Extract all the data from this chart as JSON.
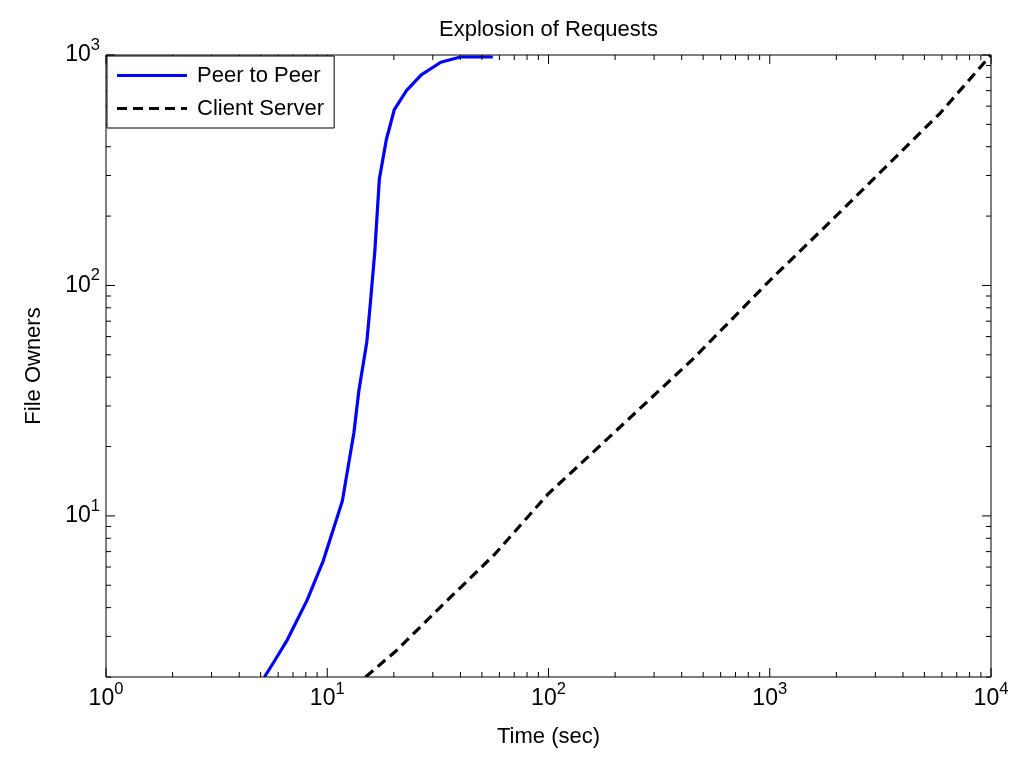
{
  "chart_data": {
    "type": "line",
    "title": "Explosion of Requests",
    "xlabel": "Time (sec)",
    "ylabel": "File Owners",
    "log": "xy",
    "grid": false,
    "legend": "top left",
    "marker": "none",
    "xlim": [
      1,
      10000
    ],
    "ylim": [
      2,
      1000
    ],
    "xticks": [
      {
        "value": 1,
        "label": "10$^{0}$"
      },
      {
        "value": 2,
        "label": null
      },
      {
        "value": 3,
        "label": null
      },
      {
        "value": 4,
        "label": null
      },
      {
        "value": 5,
        "label": null
      },
      {
        "value": 6,
        "label": null
      },
      {
        "value": 7,
        "label": null
      },
      {
        "value": 8,
        "label": null
      },
      {
        "value": 9,
        "label": null
      },
      {
        "value": 10,
        "label": "10$^{1}$"
      },
      {
        "value": 20,
        "label": null
      },
      {
        "value": 30,
        "label": null
      },
      {
        "value": 40,
        "label": null
      },
      {
        "value": 50,
        "label": null
      },
      {
        "value": 60,
        "label": null
      },
      {
        "value": 70,
        "label": null
      },
      {
        "value": 80,
        "label": null
      },
      {
        "value": 90,
        "label": null
      },
      {
        "value": 100,
        "label": "10$^{2}$"
      },
      {
        "value": 200,
        "label": null
      },
      {
        "value": 300,
        "label": null
      },
      {
        "value": 400,
        "label": null
      },
      {
        "value": 500,
        "label": null
      },
      {
        "value": 600,
        "label": null
      },
      {
        "value": 700,
        "label": null
      },
      {
        "value": 800,
        "label": null
      },
      {
        "value": 900,
        "label": null
      },
      {
        "value": 1000,
        "label": "10$^{3}$"
      },
      {
        "value": 2000,
        "label": null
      },
      {
        "value": 3000,
        "label": null
      },
      {
        "value": 4000,
        "label": null
      },
      {
        "value": 5000,
        "label": null
      },
      {
        "value": 6000,
        "label": null
      },
      {
        "value": 7000,
        "label": null
      },
      {
        "value": 8000,
        "label": null
      },
      {
        "value": 9000,
        "label": null
      },
      {
        "value": 10000,
        "label": "10$^{4}$"
      }
    ],
    "yticks": [
      {
        "value": 2,
        "label": null
      },
      {
        "value": 3,
        "label": null
      },
      {
        "value": 4,
        "label": null
      },
      {
        "value": 5,
        "label": null
      },
      {
        "value": 6,
        "label": null
      },
      {
        "value": 7,
        "label": null
      },
      {
        "value": 8,
        "label": null
      },
      {
        "value": 9,
        "label": null
      },
      {
        "value": 10,
        "label": "10$^{1}$"
      },
      {
        "value": 20,
        "label": null
      },
      {
        "value": 30,
        "label": null
      },
      {
        "value": 40,
        "label": null
      },
      {
        "value": 50,
        "label": null
      },
      {
        "value": 60,
        "label": null
      },
      {
        "value": 70,
        "label": null
      },
      {
        "value": 80,
        "label": null
      },
      {
        "value": 90,
        "label": null
      },
      {
        "value": 100,
        "label": "10$^{2}$"
      },
      {
        "value": 200,
        "label": null
      },
      {
        "value": 300,
        "label": null
      },
      {
        "value": 400,
        "label": null
      },
      {
        "value": 500,
        "label": null
      },
      {
        "value": 600,
        "label": null
      },
      {
        "value": 700,
        "label": null
      },
      {
        "value": 800,
        "label": null
      },
      {
        "value": 900,
        "label": null
      },
      {
        "value": 1000,
        "label": "10$^{3}$"
      }
    ],
    "series": [
      {
        "name": "Peer to Peer",
        "color": "#0000ff",
        "line_style": "solid",
        "x": [
          5.2,
          5.7,
          6.6,
          8.1,
          9.6,
          11.7,
          13.2,
          13.9,
          15.1,
          15.7,
          16.4,
          17.2,
          18.5,
          20.1,
          22.8,
          26.6,
          32.6,
          40,
          56
        ],
        "values": [
          2,
          2.3,
          2.9,
          4.3,
          6.4,
          11.6,
          23,
          35,
          57,
          86,
          140,
          290,
          430,
          580,
          700,
          820,
          930,
          980,
          980
        ]
      },
      {
        "name": "Client Server",
        "color": "#000000",
        "line_style": "dashed",
        "x": [
          14.9,
          20.5,
          34,
          57,
          100,
          160,
          450,
          1000,
          2100,
          5900,
          10000
        ],
        "values": [
          2,
          2.6,
          4.2,
          6.8,
          12.5,
          19,
          48,
          105,
          210,
          560,
          1000
        ]
      }
    ]
  }
}
